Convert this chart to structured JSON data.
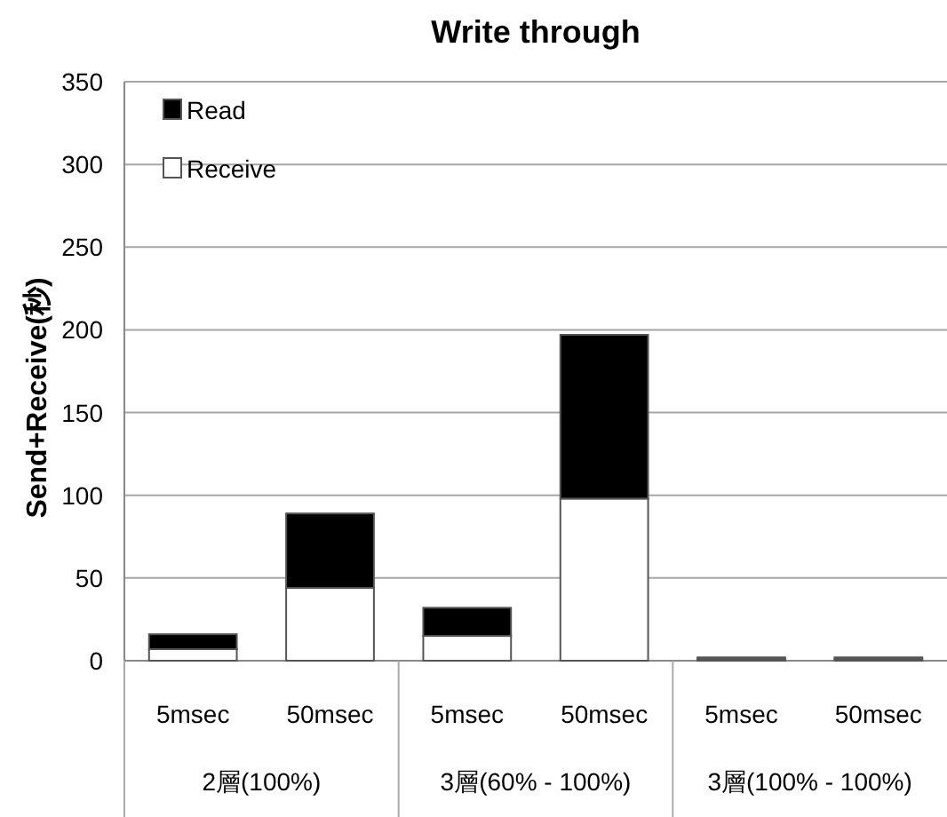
{
  "chart_data": {
    "type": "bar",
    "title": "Write through",
    "ylabel": "Send+Receive(秒)",
    "categories": [
      "5msec",
      "50msec",
      "5msec",
      "50msec",
      "5msec",
      "50msec"
    ],
    "annotations": [
      "2層(100%)",
      "3層(60% - 100%)",
      "3層(100% - 100%)"
    ],
    "stacked": true,
    "ylim": [
      0,
      350
    ],
    "yticks": [
      0,
      50,
      100,
      150,
      200,
      250,
      300,
      350
    ],
    "grid": "y",
    "legend": "top left",
    "series": [
      {
        "name": "Receive",
        "color": "#ffffff",
        "values": [
          7,
          44,
          15,
          98,
          1,
          1
        ]
      },
      {
        "name": "Read",
        "color": "#000000",
        "values": [
          9,
          45,
          17,
          99,
          1,
          1
        ]
      }
    ]
  }
}
